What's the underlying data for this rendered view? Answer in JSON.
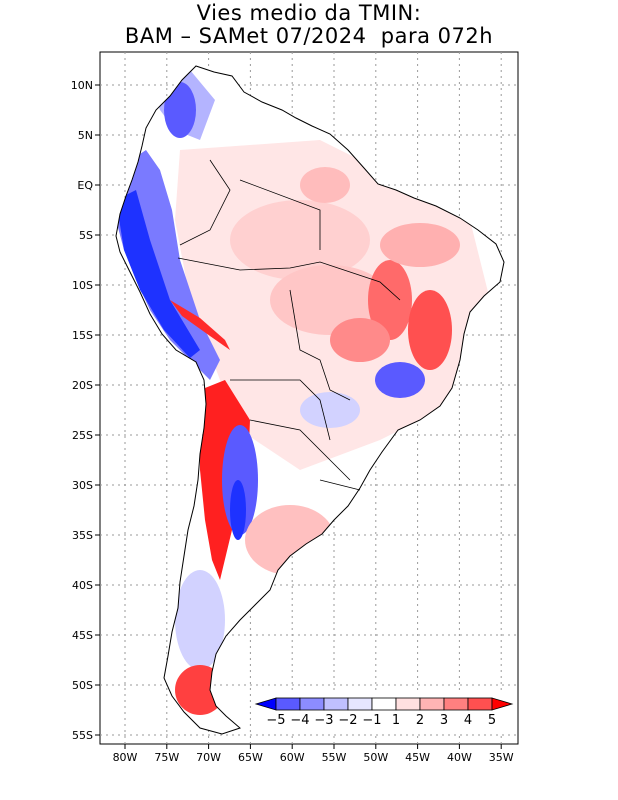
{
  "title": {
    "line1": "Vies medio da TMIN:",
    "line2": "BAM – SAMet 07/2024  para 072h"
  },
  "axes": {
    "lon_labels": [
      "80W",
      "75W",
      "70W",
      "65W",
      "60W",
      "55W",
      "50W",
      "45W",
      "40W",
      "35W"
    ],
    "lat_labels": [
      "10N",
      "5N",
      "EQ",
      "5S",
      "10S",
      "15S",
      "20S",
      "25S",
      "30S",
      "35S",
      "40S",
      "45S",
      "50S",
      "55S"
    ]
  },
  "colorbar": {
    "labels": [
      "−5",
      "−4",
      "−3",
      "−2",
      "−1",
      "1",
      "2",
      "3",
      "4",
      "5"
    ],
    "colors": [
      "#0000ff",
      "#5a5aff",
      "#8c8cff",
      "#c0c0ff",
      "#e6e6ff",
      "#ffffff",
      "#ffe0e0",
      "#ffb4b4",
      "#ff8080",
      "#ff5050",
      "#ff0000"
    ]
  },
  "colors": {
    "cold_strong": "#1e32ff",
    "cold_mid": "#7a7aff",
    "cold_light": "#d2d2ff",
    "warm_light": "#ffd6d6",
    "warm_mid": "#ff9a9a",
    "warm_strong": "#ff1e1e"
  }
}
